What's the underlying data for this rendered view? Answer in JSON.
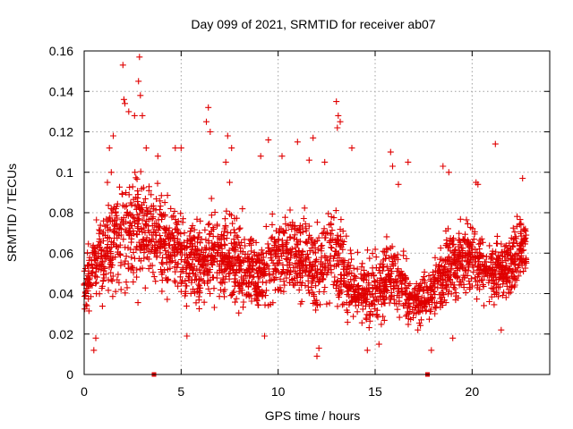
{
  "chart_data": {
    "type": "scatter",
    "title": "Day 099 of 2021, SRMTID for receiver ab07",
    "xlabel": "GPS time / hours",
    "ylabel": "SRMTID / TECUs",
    "xlim": [
      0,
      24
    ],
    "ylim": [
      0,
      0.16
    ],
    "xticks": [
      0,
      5,
      10,
      15,
      20
    ],
    "xtick_labels": [
      "0",
      "5",
      "10",
      "15",
      "20"
    ],
    "yticks": [
      0,
      0.02,
      0.04,
      0.06,
      0.08,
      0.1,
      0.12,
      0.14,
      0.16
    ],
    "ytick_labels": [
      "0",
      "0.02",
      "0.04",
      "0.06",
      "0.08",
      "0.1",
      "0.12",
      "0.14",
      "0.16"
    ],
    "grid": true,
    "marker": "+",
    "series_color": "#e00000",
    "axis_markers": [
      3.6,
      17.7
    ],
    "envelope": {
      "x": [
        0,
        1,
        2,
        3,
        4,
        5,
        6,
        7,
        8,
        9,
        10,
        11,
        12,
        13,
        14,
        15,
        16,
        17,
        18,
        19,
        20,
        21,
        22,
        22.8
      ],
      "center": [
        0.045,
        0.06,
        0.07,
        0.072,
        0.065,
        0.06,
        0.055,
        0.06,
        0.055,
        0.05,
        0.058,
        0.058,
        0.052,
        0.06,
        0.04,
        0.043,
        0.048,
        0.035,
        0.042,
        0.055,
        0.058,
        0.05,
        0.055,
        0.065
      ],
      "spread": [
        0.012,
        0.02,
        0.025,
        0.025,
        0.02,
        0.018,
        0.018,
        0.02,
        0.018,
        0.017,
        0.018,
        0.018,
        0.018,
        0.022,
        0.012,
        0.015,
        0.015,
        0.01,
        0.012,
        0.016,
        0.016,
        0.014,
        0.016,
        0.016
      ]
    },
    "outliers": [
      [
        2.0,
        0.153
      ],
      [
        2.05,
        0.136
      ],
      [
        2.1,
        0.134
      ],
      [
        2.3,
        0.13
      ],
      [
        2.6,
        0.128
      ],
      [
        2.8,
        0.145
      ],
      [
        2.85,
        0.157
      ],
      [
        2.9,
        0.138
      ],
      [
        3.0,
        0.128
      ],
      [
        1.3,
        0.112
      ],
      [
        1.5,
        0.118
      ],
      [
        3.2,
        0.112
      ],
      [
        3.8,
        0.108
      ],
      [
        4.7,
        0.112
      ],
      [
        5.0,
        0.112
      ],
      [
        6.4,
        0.132
      ],
      [
        6.5,
        0.12
      ],
      [
        6.3,
        0.125
      ],
      [
        7.4,
        0.118
      ],
      [
        7.6,
        0.112
      ],
      [
        9.5,
        0.116
      ],
      [
        9.1,
        0.108
      ],
      [
        10.2,
        0.108
      ],
      [
        11.0,
        0.115
      ],
      [
        11.6,
        0.106
      ],
      [
        11.8,
        0.117
      ],
      [
        12.4,
        0.105
      ],
      [
        13.0,
        0.135
      ],
      [
        13.1,
        0.128
      ],
      [
        13.2,
        0.125
      ],
      [
        13.05,
        0.122
      ],
      [
        13.8,
        0.112
      ],
      [
        15.8,
        0.11
      ],
      [
        15.9,
        0.103
      ],
      [
        16.7,
        0.105
      ],
      [
        16.2,
        0.094
      ],
      [
        18.5,
        0.103
      ],
      [
        18.8,
        0.1
      ],
      [
        20.2,
        0.095
      ],
      [
        20.3,
        0.094
      ],
      [
        21.2,
        0.114
      ],
      [
        22.6,
        0.097
      ],
      [
        12.0,
        0.009
      ],
      [
        12.1,
        0.013
      ],
      [
        14.6,
        0.012
      ],
      [
        15.2,
        0.015
      ],
      [
        0.5,
        0.012
      ],
      [
        0.6,
        0.018
      ],
      [
        19.0,
        0.018
      ],
      [
        17.2,
        0.022
      ],
      [
        17.9,
        0.012
      ],
      [
        21.5,
        0.022
      ],
      [
        5.3,
        0.019
      ],
      [
        9.3,
        0.019
      ],
      [
        1.4,
        0.1
      ],
      [
        1.2,
        0.095
      ],
      [
        7.3,
        0.105
      ],
      [
        7.5,
        0.095
      ]
    ]
  }
}
